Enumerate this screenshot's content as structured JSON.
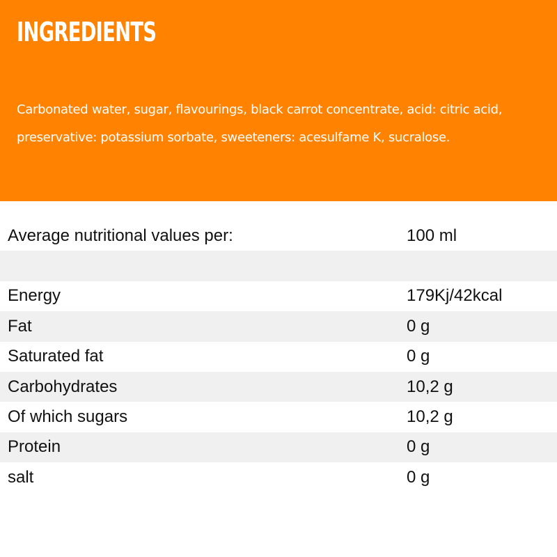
{
  "ingredients": {
    "heading": "INGREDIENTS",
    "text": "Carbonated water, sugar, flavourings, black carrot concentrate, acid: citric acid, preservative: potassium sorbate, sweeteners: acesulfame K, sucralose."
  },
  "nutrition": {
    "header": {
      "label": "Average nutritional values per:",
      "value": "100 ml"
    },
    "spacer": {
      "label": "",
      "value": ""
    },
    "rows": [
      {
        "label": "Energy",
        "value": "179Kj/42kcal"
      },
      {
        "label": "Fat",
        "value": "0 g"
      },
      {
        "label": "Saturated fat",
        "value": "0 g"
      },
      {
        "label": "Carbohydrates",
        "value": "10,2 g"
      },
      {
        "label": "Of which sugars",
        "value": "10,2 g"
      },
      {
        "label": "Protein",
        "value": "0 g"
      },
      {
        "label": "salt",
        "value": "0 g"
      }
    ]
  },
  "colors": {
    "accent": "#ff8200",
    "row_shade": "#f0f0f0",
    "text": "#111111"
  }
}
